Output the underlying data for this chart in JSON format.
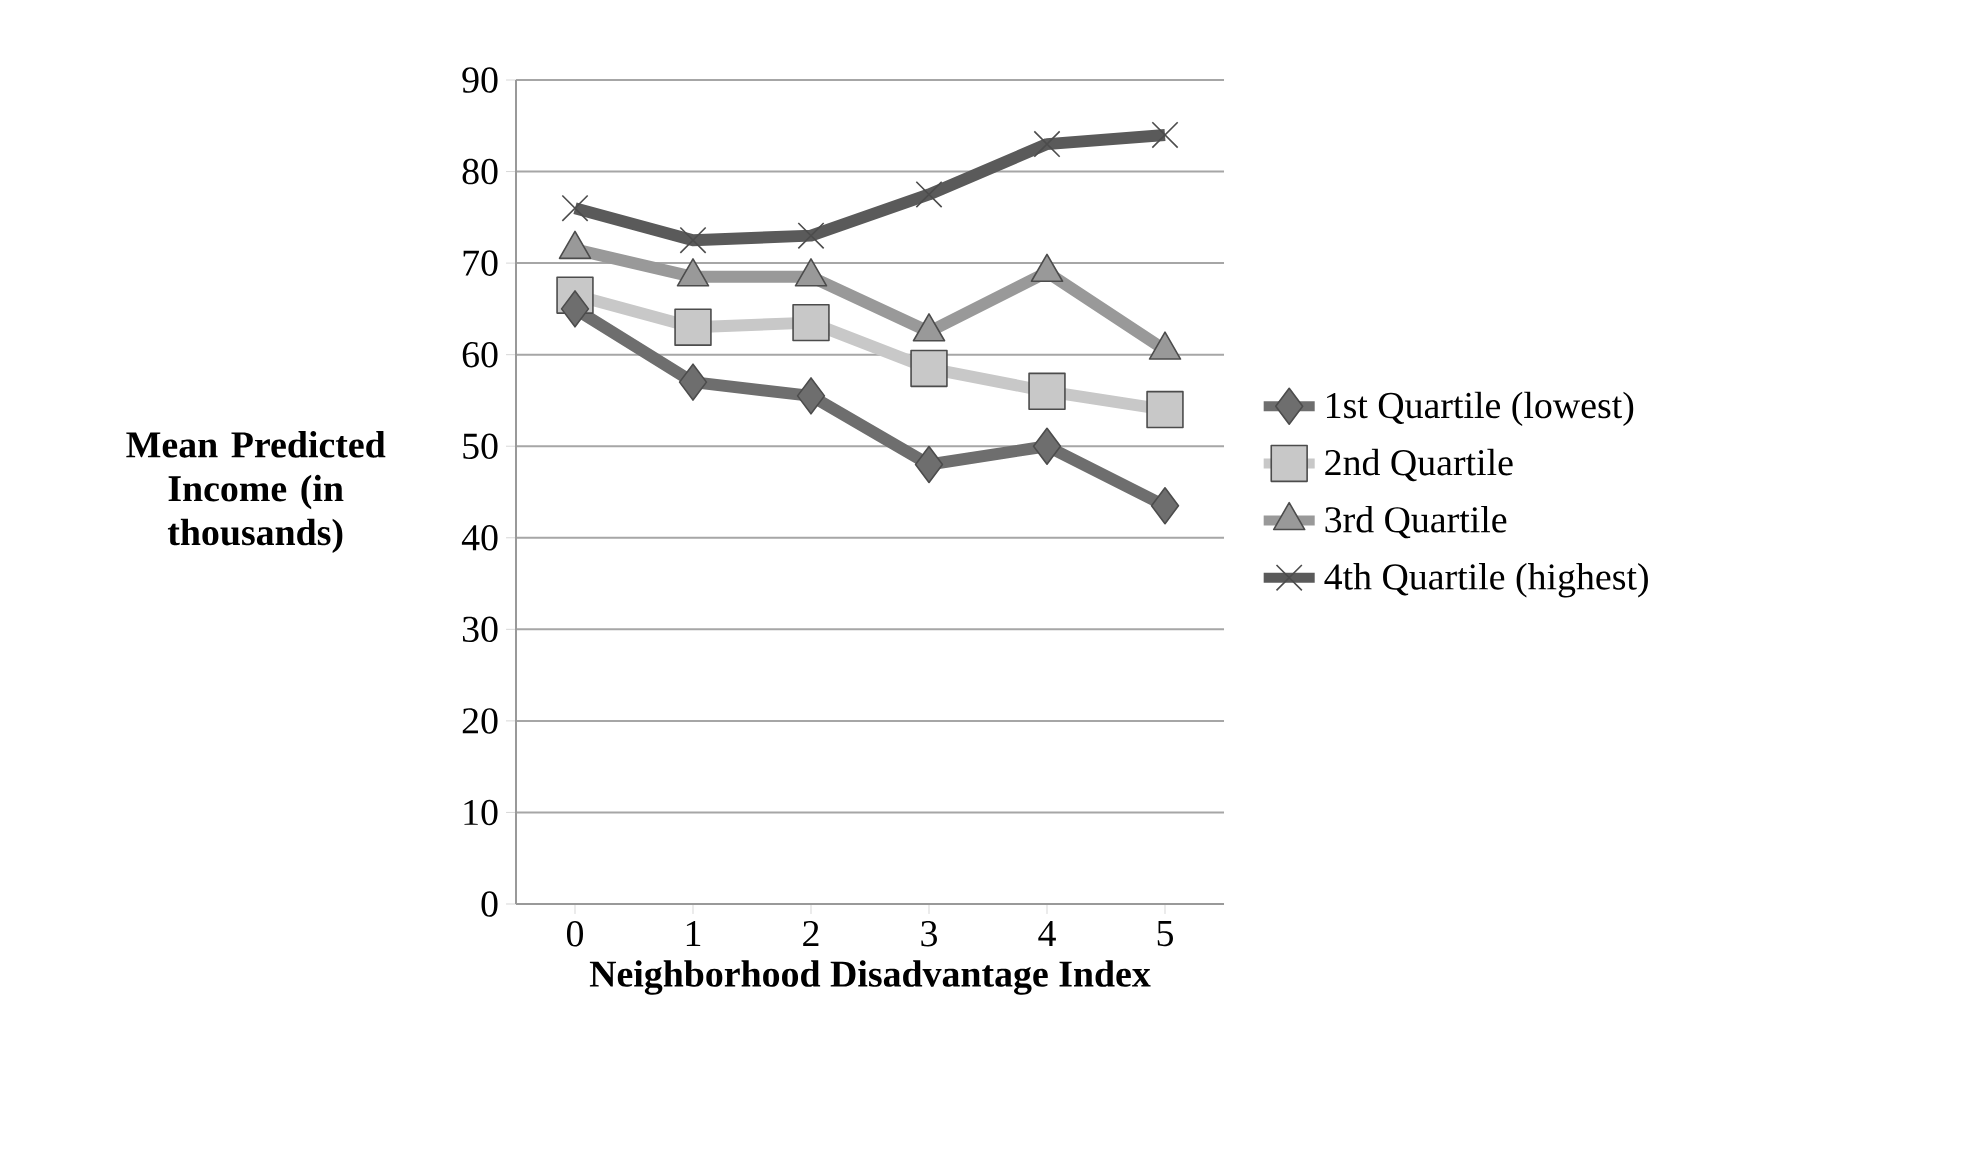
{
  "chart_data": {
    "type": "line",
    "categories": [
      "0",
      "1",
      "2",
      "3",
      "4",
      "5"
    ],
    "xlabel": "Neighborhood Disadvantage Index",
    "ylabel": "Mean Predicted Income (in thousands)",
    "ylim": [
      0,
      90
    ],
    "yticks": [
      0,
      10,
      20,
      30,
      40,
      50,
      60,
      70,
      80,
      90
    ],
    "grid": "y",
    "legend": "right",
    "series": [
      {
        "name": "1st Quartile (lowest)",
        "color": "#6e6e6e",
        "marker": "diamond",
        "values": [
          65,
          57,
          55.5,
          48,
          50,
          43.5
        ]
      },
      {
        "name": "2nd Quartile",
        "color": "#c8c8c8",
        "marker": "square",
        "values": [
          66.5,
          63,
          63.5,
          58.5,
          56,
          54
        ]
      },
      {
        "name": "3rd Quartile",
        "color": "#999999",
        "marker": "triangle",
        "values": [
          71.5,
          68.5,
          68.5,
          62.5,
          69,
          60.5
        ]
      },
      {
        "name": "4th Quartile (highest)",
        "color": "#5a5a5a",
        "marker": "cross",
        "values": [
          76,
          72.5,
          73,
          77.5,
          83,
          84
        ]
      }
    ]
  }
}
